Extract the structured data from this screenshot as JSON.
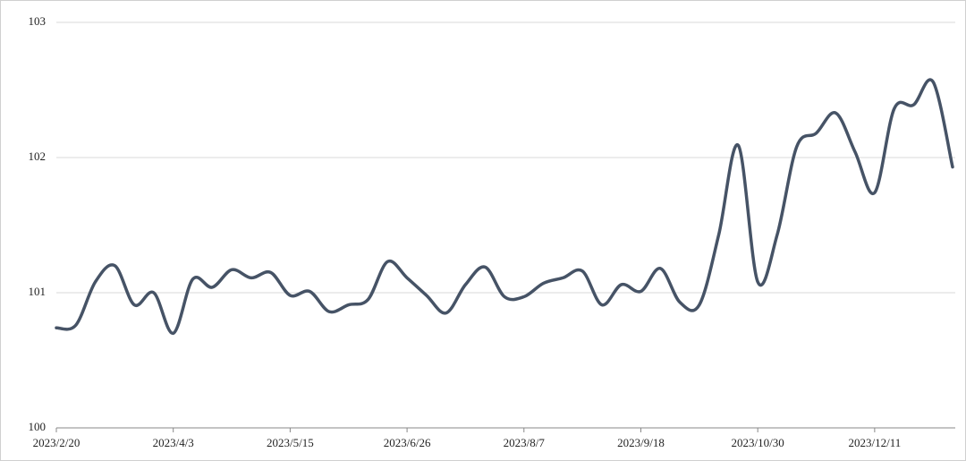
{
  "chart_data": {
    "type": "line",
    "categories": [
      "2023/2/20",
      null,
      null,
      null,
      null,
      null,
      "2023/4/3",
      null,
      null,
      null,
      null,
      null,
      "2023/5/15",
      null,
      null,
      null,
      null,
      null,
      "2023/6/26",
      null,
      null,
      null,
      null,
      null,
      "2023/8/7",
      null,
      null,
      null,
      null,
      null,
      "2023/9/18",
      null,
      null,
      null,
      null,
      null,
      "2023/10/30",
      null,
      null,
      null,
      null,
      null,
      "2023/12/11",
      null,
      null,
      null,
      null
    ],
    "series": [
      {
        "color": "#465366",
        "values": [
          100.74,
          100.76,
          101.08,
          101.2,
          100.91,
          101.0,
          100.7,
          101.1,
          101.04,
          101.17,
          101.11,
          101.15,
          100.98,
          101.01,
          100.86,
          100.91,
          100.95,
          101.23,
          101.11,
          100.98,
          100.85,
          101.06,
          101.19,
          100.97,
          100.97,
          101.07,
          101.11,
          101.16,
          100.91,
          101.06,
          101.01,
          101.18,
          100.93,
          100.91,
          101.43,
          102.09,
          101.08,
          101.43,
          102.08,
          102.18,
          102.33,
          102.04,
          101.74,
          102.36,
          102.39,
          102.56,
          101.93
        ]
      }
    ],
    "ylim": [
      100,
      103
    ],
    "yticks": [
      100,
      101,
      102,
      103
    ],
    "grid": true
  }
}
